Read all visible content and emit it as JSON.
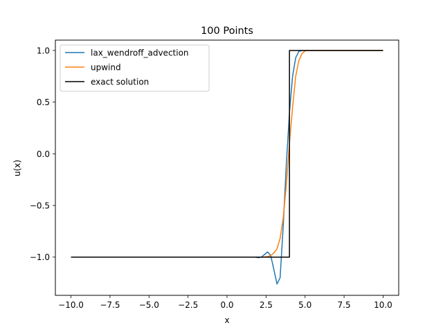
{
  "chart_data": {
    "type": "line",
    "title": "100 Points",
    "xlabel": "x",
    "ylabel": "u(x)",
    "xlim": [
      -11,
      11
    ],
    "ylim": [
      -1.37,
      1.1
    ],
    "xticks": [
      -10.0,
      -7.5,
      -5.0,
      -2.5,
      0.0,
      2.5,
      5.0,
      7.5,
      10.0
    ],
    "xtick_labels": [
      "−10.0",
      "−7.5",
      "−5.0",
      "−2.5",
      "0.0",
      "2.5",
      "5.0",
      "7.5",
      "10.0"
    ],
    "yticks": [
      -1.0,
      -0.5,
      0.0,
      0.5,
      1.0
    ],
    "ytick_labels": [
      "−1.0",
      "−0.5",
      "0.0",
      "0.5",
      "1.0"
    ],
    "legend_position": "top-left",
    "grid": false,
    "series": [
      {
        "name": "lax_wendroff_advection",
        "color": "#1f77b4",
        "points": [
          [
            -10,
            -1
          ],
          [
            1.8,
            -1
          ],
          [
            2.0,
            -1.005
          ],
          [
            2.2,
            -1.0
          ],
          [
            2.4,
            -0.975
          ],
          [
            2.6,
            -0.95
          ],
          [
            2.8,
            -0.985
          ],
          [
            3.0,
            -1.12
          ],
          [
            3.2,
            -1.26
          ],
          [
            3.4,
            -1.2
          ],
          [
            3.6,
            -0.7
          ],
          [
            3.8,
            -0.1
          ],
          [
            4.0,
            0.4
          ],
          [
            4.2,
            0.75
          ],
          [
            4.4,
            0.93
          ],
          [
            4.6,
            0.99
          ],
          [
            4.8,
            1.0
          ],
          [
            10,
            1
          ]
        ]
      },
      {
        "name": "upwind",
        "color": "#ff7f0e",
        "points": [
          [
            -10,
            -1
          ],
          [
            2.2,
            -1.0
          ],
          [
            2.6,
            -0.995
          ],
          [
            2.8,
            -0.985
          ],
          [
            3.0,
            -0.96
          ],
          [
            3.2,
            -0.92
          ],
          [
            3.4,
            -0.82
          ],
          [
            3.6,
            -0.62
          ],
          [
            3.8,
            -0.3
          ],
          [
            4.0,
            0.1
          ],
          [
            4.2,
            0.45
          ],
          [
            4.4,
            0.75
          ],
          [
            4.6,
            0.9
          ],
          [
            4.8,
            0.97
          ],
          [
            5.0,
            0.995
          ],
          [
            5.2,
            1.0
          ],
          [
            10,
            1
          ]
        ]
      },
      {
        "name": "exact solution",
        "color": "#000000",
        "points": [
          [
            -10,
            -1
          ],
          [
            4.0,
            -1
          ],
          [
            4.0,
            1
          ],
          [
            10,
            1
          ]
        ]
      }
    ]
  }
}
